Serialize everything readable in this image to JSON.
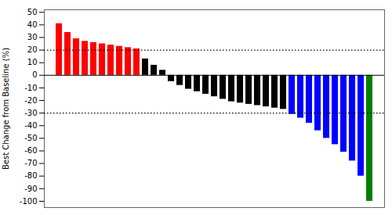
{
  "chart_data": {
    "type": "bar",
    "categories": [
      null,
      null,
      null,
      null,
      null,
      null,
      null,
      null,
      null,
      null,
      null,
      null,
      null,
      null,
      null,
      null,
      null,
      null,
      null,
      null,
      null,
      null,
      null,
      null,
      null,
      null,
      null,
      null,
      null,
      null,
      null,
      null,
      null,
      null,
      null,
      null,
      null
    ],
    "values": [
      41,
      34,
      29,
      27,
      26,
      25,
      24,
      23,
      22,
      21,
      13,
      8,
      4,
      -5,
      -8,
      -11,
      -13,
      -15,
      -17,
      -19,
      -21,
      -22,
      -23,
      -24,
      -25,
      -26,
      -27,
      -31,
      -34,
      -38,
      -44,
      -50,
      -55,
      -61,
      -68,
      -80,
      -100
    ],
    "colors": [
      "red",
      "red",
      "red",
      "red",
      "red",
      "red",
      "red",
      "red",
      "red",
      "red",
      "black",
      "black",
      "black",
      "black",
      "black",
      "black",
      "black",
      "black",
      "black",
      "black",
      "black",
      "black",
      "black",
      "black",
      "black",
      "black",
      "black",
      "blue",
      "blue",
      "blue",
      "blue",
      "blue",
      "blue",
      "blue",
      "blue",
      "blue",
      "green"
    ],
    "ylabel": "Best Change from Baseline (%)",
    "ylim": [
      -105,
      52
    ],
    "yticks": [
      -100,
      -90,
      -80,
      -70,
      -60,
      -50,
      -40,
      -30,
      -20,
      -10,
      0,
      10,
      20,
      30,
      40,
      50
    ],
    "reference_lines": [
      20,
      -30
    ],
    "tick_labels": "y",
    "grid": false
  }
}
